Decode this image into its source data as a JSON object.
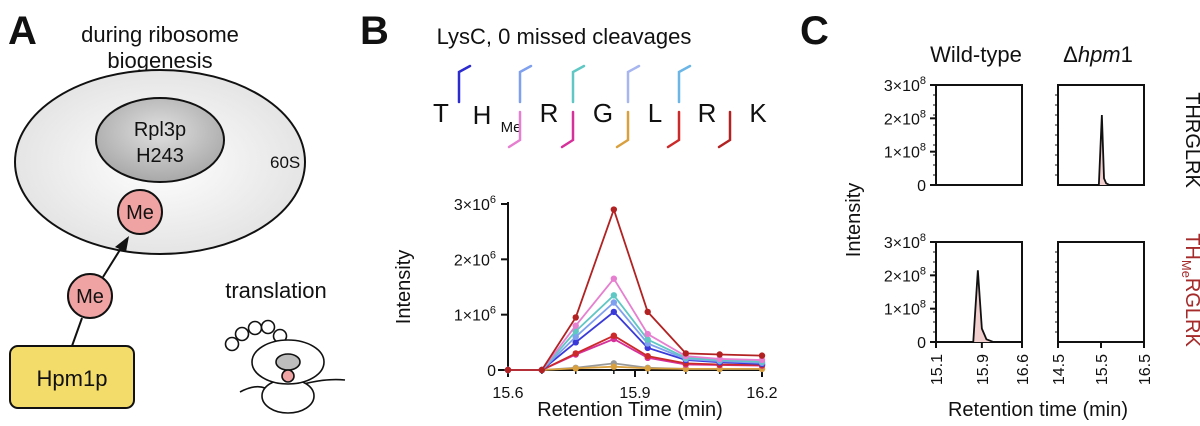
{
  "panelA": {
    "letter": "A",
    "title_line1": "during ribosome",
    "title_line2": "biogenesis",
    "protein_line1": "Rpl3p",
    "protein_line2": "H243",
    "subunit": "60S",
    "me_inner": "Me",
    "me_outer": "Me",
    "enzyme": "Hpm1p",
    "translation": "translation",
    "colors": {
      "me_fill": "#f0a3a3",
      "enzyme_fill": "#f3dc6a",
      "ribosome_fill": "#eeeeee"
    }
  },
  "panelB": {
    "letter": "B",
    "title": "LysC, 0 missed cleavages",
    "residues": [
      "T",
      "H",
      "R",
      "G",
      "L",
      "R",
      "K"
    ],
    "me_subscript": "Me",
    "chart_data": {
      "type": "line",
      "xlabel": "Retention Time (min)",
      "ylabel": "Intensity",
      "xlim": [
        15.6,
        16.2
      ],
      "ylim": [
        0,
        3000000
      ],
      "xticks": [
        "15.6",
        "15.9",
        "16.2"
      ],
      "yticks": [
        {
          "value": 0,
          "label": "0"
        },
        {
          "value": 1000000,
          "base": "1×10",
          "exp": "6"
        },
        {
          "value": 2000000,
          "base": "2×10",
          "exp": "6"
        },
        {
          "value": 3000000,
          "base": "3×10",
          "exp": "6"
        }
      ],
      "x": [
        15.6,
        15.68,
        15.76,
        15.85,
        15.93,
        16.02,
        16.1,
        16.2
      ],
      "series": [
        {
          "color": "#b22222",
          "values": [
            0,
            0,
            950000,
            2900000,
            1050000,
            300000,
            280000,
            260000
          ]
        },
        {
          "color": "#e67fd0",
          "values": [
            0,
            0,
            800000,
            1650000,
            650000,
            250000,
            200000,
            180000
          ]
        },
        {
          "color": "#5fc7c4",
          "values": [
            0,
            0,
            700000,
            1350000,
            550000,
            220000,
            180000,
            150000
          ]
        },
        {
          "color": "#7fa0ee",
          "values": [
            0,
            0,
            600000,
            1220000,
            480000,
            200000,
            160000,
            130000
          ]
        },
        {
          "color": "#3a3ad8",
          "values": [
            0,
            0,
            500000,
            1050000,
            400000,
            180000,
            140000,
            110000
          ]
        },
        {
          "color": "#cc2a2a",
          "values": [
            0,
            0,
            300000,
            620000,
            250000,
            120000,
            100000,
            90000
          ]
        },
        {
          "color": "#d6309a",
          "values": [
            0,
            0,
            280000,
            560000,
            220000,
            100000,
            90000,
            80000
          ]
        },
        {
          "color": "#d9a040",
          "values": [
            0,
            0,
            30000,
            60000,
            30000,
            20000,
            20000,
            20000
          ]
        },
        {
          "color": "#999999",
          "values": [
            0,
            0,
            40000,
            120000,
            40000,
            20000,
            20000,
            20000
          ]
        }
      ]
    }
  },
  "panelC": {
    "letter": "C",
    "col1": "Wild-type",
    "col2_delta": "Δ",
    "col2_italic": "hpm",
    "col2_num": "1",
    "row1_label": "THRGLRK",
    "row2_label_pre": "TH",
    "row2_label_sub": "Me",
    "row2_label_post": "RGLRK",
    "ylabel": "Intensity",
    "xlabel": "Retention time (min)",
    "row2_color": "#a52a2a",
    "chart_data": {
      "type": "area",
      "ylim": [
        0,
        300000000
      ],
      "yticks": [
        {
          "value": 0,
          "label": "0"
        },
        {
          "value": 100000000,
          "base": "1×10",
          "exp": "8"
        },
        {
          "value": 200000000,
          "base": "2×10",
          "exp": "8"
        },
        {
          "value": 300000000,
          "base": "3×10",
          "exp": "8"
        }
      ],
      "panels": [
        {
          "name": "wt-unmodified",
          "xlim": [
            15.1,
            16.6
          ],
          "x": [],
          "values": []
        },
        {
          "name": "hpm1-unmodified",
          "xlim": [
            14.5,
            16.5
          ],
          "x": [
            15.3,
            15.45,
            15.52,
            15.57,
            15.62,
            15.7,
            16.5
          ],
          "values": [
            0,
            0,
            210000000,
            20000000,
            5000000,
            0,
            0
          ]
        },
        {
          "name": "wt-methylated",
          "xlim": [
            15.1,
            16.6
          ],
          "xticks": [
            "15.1",
            "15.9",
            "16.6"
          ],
          "x": [
            15.6,
            15.75,
            15.83,
            15.9,
            15.98,
            16.1,
            16.6
          ],
          "values": [
            0,
            0,
            215000000,
            40000000,
            8000000,
            0,
            0
          ]
        },
        {
          "name": "hpm1-methylated",
          "xlim": [
            14.5,
            16.5
          ],
          "xticks": [
            "14.5",
            "15.5",
            "16.5"
          ],
          "x": [],
          "values": []
        }
      ],
      "fill_color": "#f2cfcf"
    }
  }
}
